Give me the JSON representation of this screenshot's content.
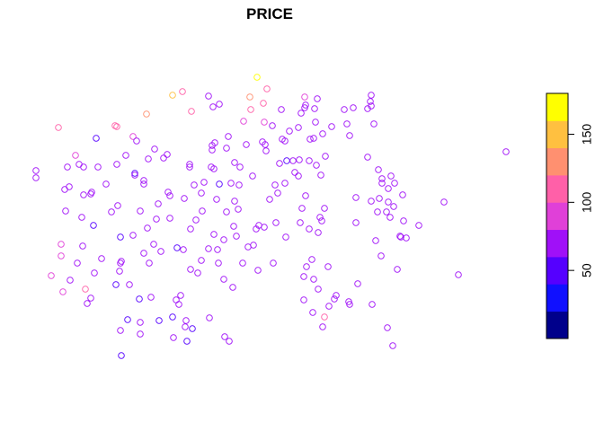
{
  "chart_data": {
    "type": "scatter",
    "title": "PRICE",
    "xlabel": "",
    "ylabel": "",
    "legend": {
      "placement": "right",
      "ticks": [
        50,
        100,
        150
      ],
      "range": [
        0,
        180
      ],
      "colors": [
        "#00008B",
        "#1010FF",
        "#5500FF",
        "#A010F8",
        "#E040D8",
        "#FF60A8",
        "#FF9070",
        "#FFC040",
        "#FFFF00"
      ]
    },
    "points": [
      [
        40,
        190,
        60
      ],
      [
        40,
        198,
        60
      ],
      [
        57,
        307,
        80
      ],
      [
        65,
        142,
        110
      ],
      [
        68,
        272,
        90
      ],
      [
        68,
        285,
        90
      ],
      [
        70,
        325,
        90
      ],
      [
        72,
        211,
        70
      ],
      [
        73,
        235,
        60
      ],
      [
        75,
        186,
        60
      ],
      [
        77,
        208,
        60
      ],
      [
        78,
        312,
        60
      ],
      [
        84,
        173,
        80
      ],
      [
        86,
        293,
        60
      ],
      [
        88,
        183,
        60
      ],
      [
        91,
        242,
        60
      ],
      [
        92,
        274,
        60
      ],
      [
        93,
        186,
        60
      ],
      [
        93,
        217,
        60
      ],
      [
        95,
        322,
        100
      ],
      [
        97,
        338,
        70
      ],
      [
        101,
        332,
        60
      ],
      [
        101,
        216,
        60
      ],
      [
        102,
        214,
        60
      ],
      [
        104,
        251,
        50
      ],
      [
        105,
        304,
        60
      ],
      [
        107,
        154,
        40
      ],
      [
        109,
        186,
        60
      ],
      [
        113,
        288,
        60
      ],
      [
        118,
        205,
        60
      ],
      [
        124,
        236,
        60
      ],
      [
        128,
        140,
        100
      ],
      [
        129,
        317,
        40
      ],
      [
        130,
        141,
        110
      ],
      [
        130,
        183,
        60
      ],
      [
        131,
        229,
        60
      ],
      [
        133,
        302,
        60
      ],
      [
        134,
        293,
        60
      ],
      [
        134,
        368,
        60
      ],
      [
        134,
        264,
        40
      ],
      [
        135,
        291,
        60
      ],
      [
        135,
        396,
        40
      ],
      [
        140,
        173,
        60
      ],
      [
        142,
        356,
        50
      ],
      [
        144,
        317,
        60
      ],
      [
        148,
        152,
        80
      ],
      [
        148,
        262,
        60
      ],
      [
        150,
        193,
        50
      ],
      [
        150,
        195,
        60
      ],
      [
        152,
        157,
        60
      ],
      [
        155,
        333,
        50
      ],
      [
        156,
        359,
        60
      ],
      [
        156,
        372,
        60
      ],
      [
        156,
        235,
        60
      ],
      [
        160,
        201,
        60
      ],
      [
        160,
        205,
        60
      ],
      [
        160,
        282,
        60
      ],
      [
        163,
        127,
        120
      ],
      [
        164,
        254,
        60
      ],
      [
        165,
        177,
        60
      ],
      [
        166,
        293,
        60
      ],
      [
        168,
        331,
        60
      ],
      [
        171,
        272,
        60
      ],
      [
        172,
        166,
        60
      ],
      [
        174,
        244,
        60
      ],
      [
        176,
        227,
        60
      ],
      [
        177,
        357,
        50
      ],
      [
        179,
        280,
        60
      ],
      [
        182,
        176,
        60
      ],
      [
        186,
        172,
        60
      ],
      [
        187,
        214,
        60
      ],
      [
        189,
        218,
        60
      ],
      [
        189,
        243,
        60
      ],
      [
        192,
        106,
        150
      ],
      [
        192,
        353,
        50
      ],
      [
        193,
        376,
        60
      ],
      [
        196,
        334,
        60
      ],
      [
        197,
        276,
        50
      ],
      [
        199,
        339,
        60
      ],
      [
        201,
        329,
        60
      ],
      [
        203,
        102,
        100
      ],
      [
        204,
        278,
        70
      ],
      [
        205,
        221,
        60
      ],
      [
        206,
        364,
        60
      ],
      [
        207,
        357,
        60
      ],
      [
        208,
        380,
        50
      ],
      [
        211,
        183,
        60
      ],
      [
        211,
        186,
        60
      ],
      [
        212,
        255,
        60
      ],
      [
        212,
        300,
        60
      ],
      [
        213,
        124,
        110
      ],
      [
        214,
        366,
        50
      ],
      [
        216,
        206,
        60
      ],
      [
        218,
        245,
        60
      ],
      [
        220,
        304,
        60
      ],
      [
        224,
        215,
        60
      ],
      [
        224,
        290,
        60
      ],
      [
        225,
        235,
        60
      ],
      [
        227,
        203,
        60
      ],
      [
        232,
        277,
        60
      ],
      [
        232,
        107,
        60
      ],
      [
        233,
        354,
        60
      ],
      [
        235,
        186,
        60
      ],
      [
        236,
        162,
        60
      ],
      [
        236,
        167,
        60
      ],
      [
        237,
        119,
        60
      ],
      [
        238,
        188,
        60
      ],
      [
        238,
        261,
        60
      ],
      [
        239,
        159,
        60
      ],
      [
        241,
        222,
        60
      ],
      [
        242,
        278,
        60
      ],
      [
        243,
        293,
        60
      ],
      [
        244,
        116,
        60
      ],
      [
        244,
        205,
        50
      ],
      [
        249,
        267,
        60
      ],
      [
        249,
        311,
        60
      ],
      [
        250,
        375,
        60
      ],
      [
        252,
        236,
        60
      ],
      [
        252,
        165,
        60
      ],
      [
        254,
        152,
        60
      ],
      [
        255,
        380,
        60
      ],
      [
        257,
        204,
        60
      ],
      [
        259,
        320,
        60
      ],
      [
        260,
        252,
        60
      ],
      [
        261,
        181,
        60
      ],
      [
        261,
        224,
        60
      ],
      [
        263,
        263,
        60
      ],
      [
        265,
        233,
        60
      ],
      [
        266,
        206,
        60
      ],
      [
        267,
        186,
        60
      ],
      [
        270,
        293,
        60
      ],
      [
        271,
        135,
        80
      ],
      [
        274,
        161,
        60
      ],
      [
        276,
        275,
        60
      ],
      [
        278,
        108,
        130
      ],
      [
        279,
        122,
        100
      ],
      [
        281,
        196,
        60
      ],
      [
        282,
        273,
        60
      ],
      [
        285,
        255,
        60
      ],
      [
        286,
        86,
        160
      ],
      [
        287,
        301,
        60
      ],
      [
        288,
        251,
        60
      ],
      [
        292,
        158,
        60
      ],
      [
        293,
        115,
        100
      ],
      [
        294,
        136,
        80
      ],
      [
        294,
        253,
        60
      ],
      [
        295,
        161,
        60
      ],
      [
        296,
        168,
        60
      ],
      [
        297,
        99,
        110
      ],
      [
        300,
        222,
        60
      ],
      [
        303,
        140,
        60
      ],
      [
        304,
        293,
        60
      ],
      [
        306,
        206,
        60
      ],
      [
        307,
        248,
        60
      ],
      [
        309,
        215,
        60
      ],
      [
        311,
        182,
        60
      ],
      [
        313,
        122,
        60
      ],
      [
        314,
        155,
        60
      ],
      [
        317,
        204,
        60
      ],
      [
        317,
        157,
        60
      ],
      [
        318,
        264,
        60
      ],
      [
        319,
        179,
        50
      ],
      [
        322,
        146,
        60
      ],
      [
        326,
        179,
        60
      ],
      [
        328,
        192,
        60
      ],
      [
        332,
        142,
        60
      ],
      [
        332,
        196,
        60
      ],
      [
        333,
        178,
        60
      ],
      [
        334,
        248,
        60
      ],
      [
        335,
        126,
        60
      ],
      [
        336,
        232,
        60
      ],
      [
        338,
        308,
        60
      ],
      [
        338,
        334,
        60
      ],
      [
        339,
        108,
        90
      ],
      [
        339,
        120,
        60
      ],
      [
        340,
        117,
        60
      ],
      [
        340,
        218,
        60
      ],
      [
        341,
        297,
        60
      ],
      [
        344,
        179,
        60
      ],
      [
        344,
        255,
        60
      ],
      [
        345,
        155,
        60
      ],
      [
        347,
        289,
        60
      ],
      [
        348,
        348,
        60
      ],
      [
        349,
        311,
        60
      ],
      [
        349,
        154,
        60
      ],
      [
        350,
        121,
        60
      ],
      [
        351,
        136,
        60
      ],
      [
        352,
        184,
        60
      ],
      [
        353,
        110,
        60
      ],
      [
        354,
        322,
        60
      ],
      [
        354,
        259,
        60
      ],
      [
        356,
        242,
        60
      ],
      [
        357,
        195,
        60
      ],
      [
        358,
        246,
        60
      ],
      [
        359,
        364,
        60
      ],
      [
        359,
        149,
        60
      ],
      [
        361,
        353,
        100
      ],
      [
        361,
        232,
        60
      ],
      [
        362,
        174,
        60
      ],
      [
        365,
        297,
        60
      ],
      [
        366,
        341,
        60
      ],
      [
        369,
        141,
        60
      ],
      [
        372,
        333,
        60
      ],
      [
        374,
        329,
        60
      ],
      [
        383,
        122,
        60
      ],
      [
        386,
        138,
        60
      ],
      [
        388,
        336,
        60
      ],
      [
        389,
        151,
        60
      ],
      [
        389,
        339,
        60
      ],
      [
        393,
        120,
        60
      ],
      [
        396,
        220,
        60
      ],
      [
        396,
        248,
        60
      ],
      [
        398,
        316,
        60
      ],
      [
        409,
        121,
        60
      ],
      [
        409,
        175,
        60
      ],
      [
        412,
        113,
        60
      ],
      [
        413,
        106,
        60
      ],
      [
        413,
        118,
        60
      ],
      [
        413,
        224,
        60
      ],
      [
        414,
        339,
        60
      ],
      [
        416,
        138,
        60
      ],
      [
        418,
        268,
        60
      ],
      [
        420,
        236,
        60
      ],
      [
        421,
        189,
        60
      ],
      [
        422,
        221,
        60
      ],
      [
        424,
        285,
        60
      ],
      [
        425,
        199,
        60
      ],
      [
        425,
        204,
        60
      ],
      [
        430,
        236,
        60
      ],
      [
        431,
        365,
        60
      ],
      [
        432,
        210,
        60
      ],
      [
        432,
        225,
        60
      ],
      [
        434,
        242,
        60
      ],
      [
        435,
        196,
        60
      ],
      [
        437,
        385,
        60
      ],
      [
        438,
        230,
        60
      ],
      [
        439,
        204,
        60
      ],
      [
        442,
        300,
        60
      ],
      [
        445,
        263,
        60
      ],
      [
        446,
        264,
        60
      ],
      [
        448,
        217,
        60
      ],
      [
        449,
        246,
        60
      ],
      [
        452,
        265,
        60
      ],
      [
        466,
        251,
        60
      ],
      [
        494,
        225,
        60
      ],
      [
        510,
        306,
        60
      ],
      [
        563,
        169,
        60
      ]
    ]
  }
}
